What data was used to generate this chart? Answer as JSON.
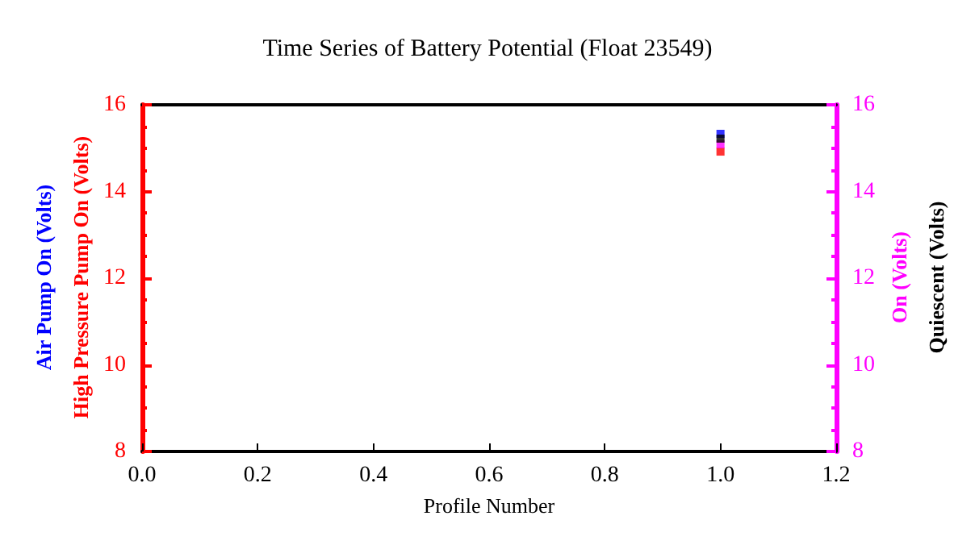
{
  "chart_data": {
    "type": "scatter",
    "title": "Time Series of Battery Potential (Float 23549)",
    "xlabel": "Profile Number",
    "x": [
      1
    ],
    "series": [
      {
        "name": "Air Pump On (Volts)",
        "color": "#0000ff",
        "axis": "y",
        "values": [
          15.33
        ]
      },
      {
        "name": "High Pressure Pump On (Volts)",
        "color": "#ff0000",
        "axis": "y",
        "values": [
          14.92
        ]
      },
      {
        "name": "On (Volts)",
        "color": "#ff00ff",
        "axis": "y2",
        "values": [
          15.09
        ]
      },
      {
        "name": "Quiescent (Volts)",
        "color": "#000000",
        "axis": "y2",
        "values": [
          15.22
        ]
      }
    ],
    "xlim": [
      0,
      1.2
    ],
    "xticks": [
      {
        "value": 0,
        "label": "0.0"
      },
      0.2,
      0.4,
      0.6,
      0.8,
      {
        "value": 1,
        "label": "1.0"
      },
      1.2
    ],
    "ylim": [
      8,
      16
    ],
    "yticks": [
      8,
      10,
      12,
      14,
      16
    ],
    "y2lim": [
      8,
      16
    ],
    "y2ticks": [
      8,
      10,
      12,
      14,
      16
    ],
    "marker": "square",
    "grid": false
  }
}
